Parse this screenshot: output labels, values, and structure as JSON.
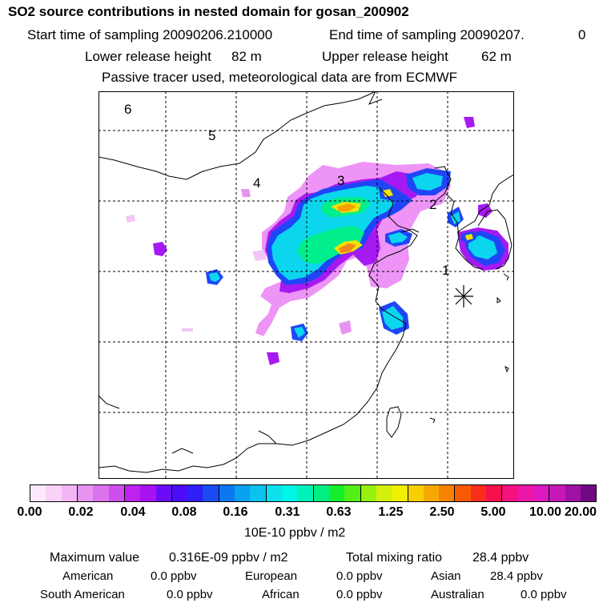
{
  "header": {
    "title": "SO2 source contributions in nested domain for gosan_200902",
    "start_label": "Start time of sampling 20090206.210000",
    "end_label": "End time of sampling 20090207.",
    "end_value": "0",
    "lower_label": "Lower release height",
    "lower_value": "82 m",
    "upper_label": "Upper release height",
    "upper_value": "62 m",
    "tracer_note": "Passive tracer used, meteorological data are from ECMWF"
  },
  "map": {
    "region_labels": [
      "6",
      "5",
      "4",
      "3",
      "2",
      "1"
    ],
    "receptor_marker": "asterisk-icon"
  },
  "colorbar": {
    "colors": [
      "#fde8fd",
      "#f9d2f8",
      "#f2b6f4",
      "#e694f0",
      "#db72ee",
      "#cf4fee",
      "#bf22ee",
      "#a812f2",
      "#6a0cf7",
      "#4a0df8",
      "#2e1ef8",
      "#1a4cf6",
      "#0b78f2",
      "#0aa0f0",
      "#0ac2ef",
      "#0ee0ee",
      "#00f5e6",
      "#00f2b8",
      "#00ee82",
      "#14ee2c",
      "#52f014",
      "#98f00e",
      "#d2f00a",
      "#f0f000",
      "#f5cf00",
      "#f7a800",
      "#f78300",
      "#f75a00",
      "#f82e1a",
      "#f8104e",
      "#f41280",
      "#ec16a8",
      "#de18c0",
      "#c418b8",
      "#a012a6",
      "#700a82"
    ],
    "tick_labels": [
      "0.00",
      "0.02",
      "0.04",
      "0.08",
      "0.16",
      "0.31",
      "0.63",
      "1.25",
      "2.50",
      "5.00",
      "10.00",
      "20.00"
    ],
    "units": "10E-10 ppbv / m2"
  },
  "stats": {
    "max_label": "Maximum value",
    "max_value": "0.316E-09 ppbv / m2",
    "total_label": "Total mixing ratio",
    "total_value": "28.4 ppbv",
    "regions": [
      {
        "name": "American",
        "value": "0.0 ppbv"
      },
      {
        "name": "European",
        "value": "0.0 ppbv"
      },
      {
        "name": "Asian",
        "value": "28.4 ppbv"
      },
      {
        "name": "South American",
        "value": "0.0 ppbv"
      },
      {
        "name": "African",
        "value": "0.0 ppbv"
      },
      {
        "name": "Australian",
        "value": "0.0 ppbv"
      }
    ]
  }
}
